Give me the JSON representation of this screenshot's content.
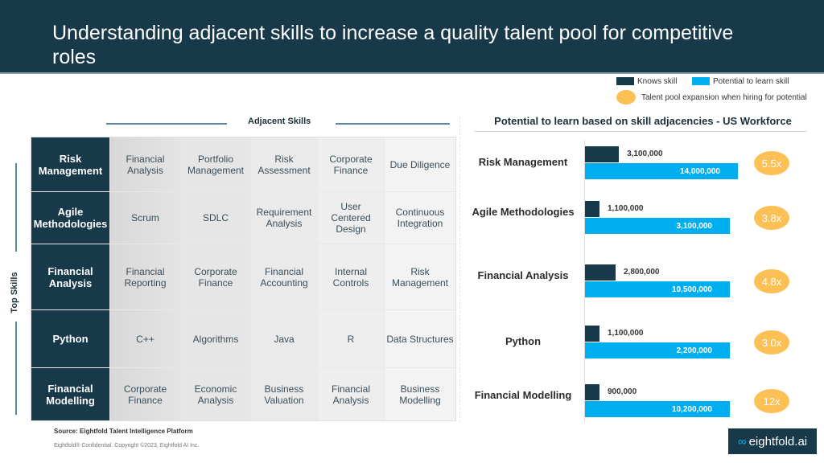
{
  "title": "Understanding adjacent skills to increase a quality talent pool for competitive roles",
  "legend": {
    "knows": "Knows skill",
    "potential": "Potential to learn skill",
    "expansion": "Talent pool expansion when hiring for potential"
  },
  "colors": {
    "knows": "#17394a",
    "potential": "#00aeef",
    "expansion": "#fcc054"
  },
  "matrix": {
    "x_axis": "Adjacent Skills",
    "y_axis": "Top Skills",
    "rows": [
      {
        "skill": "Risk Management",
        "adjacent": [
          "Financial Analysis",
          "Portfolio Management",
          "Risk Assessment",
          "Corporate Finance",
          "Due Diligence"
        ]
      },
      {
        "skill": "Agile Methodologies",
        "adjacent": [
          "Scrum",
          "SDLC",
          "Requirement Analysis",
          "User Centered Design",
          "Continuous Integration"
        ]
      },
      {
        "skill": "Financial Analysis",
        "adjacent": [
          "Financial Reporting",
          "Corporate Finance",
          "Financial Accounting",
          "Internal Controls",
          "Risk Management"
        ]
      },
      {
        "skill": "Python",
        "adjacent": [
          "C++",
          "Algorithms",
          "Java",
          "R",
          "Data Structures"
        ]
      },
      {
        "skill": "Financial Modelling",
        "adjacent": [
          "Corporate Finance",
          "Economic Analysis",
          "Business Valuation",
          "Financial Analysis",
          "Business Modelling"
        ]
      }
    ]
  },
  "chart_data": {
    "type": "bar",
    "title": "Potential to learn based on skill adjacencies - US Workforce",
    "categories": [
      "Risk Management",
      "Agile Methodologies",
      "Financial Analysis",
      "Python",
      "Financial Modelling"
    ],
    "series": [
      {
        "name": "Knows skill",
        "values": [
          3100000,
          1100000,
          2800000,
          1100000,
          900000
        ],
        "labels": [
          "3,100,000",
          "1,100,000",
          "2,800,000",
          "1,100,000",
          "900,000"
        ]
      },
      {
        "name": "Potential to learn skill",
        "values": [
          14000000,
          3100000,
          10500000,
          2200000,
          10200000
        ],
        "labels": [
          "14,000,000",
          "3,100,000",
          "10,500,000",
          "2,200,000",
          "10,200,000"
        ]
      }
    ],
    "expansion": [
      "5.5x",
      "3.8x",
      "4.8x",
      "3.0x",
      "12x"
    ]
  },
  "footer": {
    "source": "Source: Eightfold Talent Intelligence Platform",
    "copyright": "Eightfold® Confidential. Copyright ©2023, Eightfold AI Inc.",
    "logo": "eightfold.ai"
  }
}
